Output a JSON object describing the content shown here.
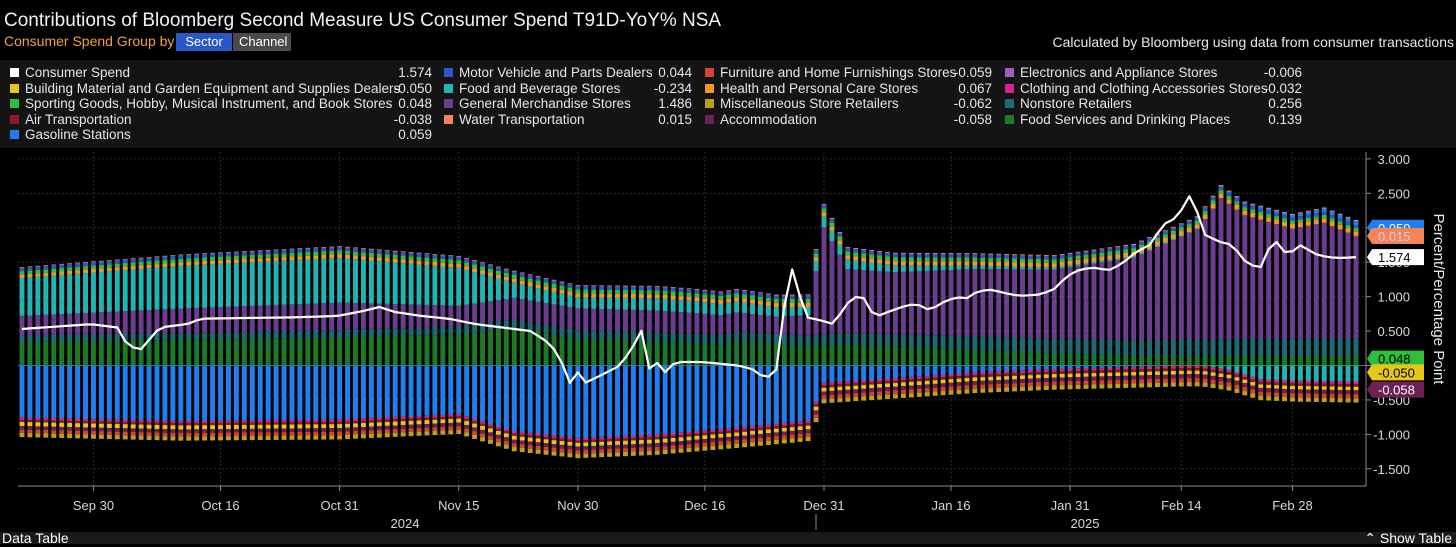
{
  "header": {
    "title": "Contributions of Bloomberg Second Measure US Consumer Spend T91D-YoY% NSA",
    "group_by_label": "Consumer Spend  Group by",
    "sector_button": "Sector",
    "channel_button": "Channel",
    "note": "Calculated by Bloomberg using data from consumer transactions"
  },
  "footer": {
    "data_table": "Data Table",
    "show_table": "⌃ Show Table"
  },
  "legend": [
    {
      "label": "Consumer Spend",
      "value": "1.574",
      "color": "#ffffff"
    },
    {
      "label": "Building Material and Garden Equipment and Supplies Dealers",
      "value": "-0.050",
      "color": "#e6c619"
    },
    {
      "label": "Sporting Goods, Hobby, Musical Instrument, and Book Stores",
      "value": "0.048",
      "color": "#2fbf3c"
    },
    {
      "label": "Air Transportation",
      "value": "-0.038",
      "color": "#8b1a2a"
    },
    {
      "label": "Gasoline Stations",
      "value": "0.059",
      "color": "#1f7ff2"
    },
    {
      "label": "Motor Vehicle and Parts Dealers",
      "value": "0.044",
      "color": "#2b57c8"
    },
    {
      "label": "Food and Beverage Stores",
      "value": "-0.234",
      "color": "#22b3b3"
    },
    {
      "label": "General Merchandise Stores",
      "value": "1.486",
      "color": "#6a3d8f"
    },
    {
      "label": "Water Transportation",
      "value": "0.015",
      "color": "#f5835a"
    },
    {
      "label": "Furniture and Home Furnishings Stores",
      "value": "-0.059",
      "color": "#d2452e"
    },
    {
      "label": "Health and Personal Care Stores",
      "value": "0.067",
      "color": "#f0962a"
    },
    {
      "label": "Miscellaneous Store Retailers",
      "value": "-0.062",
      "color": "#b8a21a"
    },
    {
      "label": "Accommodation",
      "value": "-0.058",
      "color": "#6e1f55"
    },
    {
      "label": "Electronics and Appliance Stores",
      "value": "-0.006",
      "color": "#9b5fc0"
    },
    {
      "label": "Clothing and Clothing Accessories Stores",
      "value": "-0.032",
      "color": "#d6258a"
    },
    {
      "label": "Nonstore Retailers",
      "value": "0.256",
      "color": "#1d6b73"
    },
    {
      "label": "Food Services and Drinking Places",
      "value": "0.139",
      "color": "#1e7a26"
    }
  ],
  "chart_data": {
    "type": "bar",
    "stacked": true,
    "ylabel": "Percent/Percentage Point",
    "ylim": [
      -1.75,
      3.1
    ],
    "yticks": [
      "3.000",
      "2.500",
      "2.000",
      "1.500",
      "1.000",
      "0.500",
      "0.000",
      "-0.500",
      "-1.000",
      "-1.500"
    ],
    "xticks": [
      "Sep 30",
      "Oct 16",
      "Oct 31",
      "Nov 15",
      "Nov 30",
      "Dec 16",
      "Dec 31",
      "Jan 16",
      "Jan 31",
      "Feb 14",
      "Feb 28"
    ],
    "year_labels": [
      "2024",
      "2025"
    ],
    "x_start": "2024-09-21",
    "x_end": "2025-03-08",
    "line_series": "Consumer Spend",
    "components": [
      {
        "name": "Food Services and Drinking Places",
        "color": "#1e7a26",
        "anchors": [
          [
            0,
            0.34
          ],
          [
            40,
            0.4
          ],
          [
            55,
            0.45
          ],
          [
            62,
            0.55
          ],
          [
            70,
            0.38
          ],
          [
            80,
            0.35
          ],
          [
            88,
            0.3
          ],
          [
            90,
            0.35
          ],
          [
            99,
            0.28
          ],
          [
            103,
            0.32
          ],
          [
            120,
            0.22
          ],
          [
            140,
            0.14
          ],
          [
            168,
            0.139
          ]
        ]
      },
      {
        "name": "Nonstore Retailers",
        "color": "#1d6b73",
        "anchors": [
          [
            0,
            0.1
          ],
          [
            60,
            0.12
          ],
          [
            80,
            0.14
          ],
          [
            99,
            0.15
          ],
          [
            120,
            0.2
          ],
          [
            150,
            0.24
          ],
          [
            168,
            0.256
          ]
        ]
      },
      {
        "name": "General Merchandise Stores",
        "color": "#6a3d8f",
        "anchors": [
          [
            0,
            0.28
          ],
          [
            20,
            0.35
          ],
          [
            40,
            0.4
          ],
          [
            55,
            0.3
          ],
          [
            70,
            0.32
          ],
          [
            85,
            0.3
          ],
          [
            95,
            0.25
          ],
          [
            99,
            0.3
          ],
          [
            101,
            1.55
          ],
          [
            104,
            0.92
          ],
          [
            110,
            0.9
          ],
          [
            120,
            0.98
          ],
          [
            130,
            1.0
          ],
          [
            140,
            1.2
          ],
          [
            148,
            1.6
          ],
          [
            151,
            2.05
          ],
          [
            154,
            1.8
          ],
          [
            160,
            1.6
          ],
          [
            164,
            1.68
          ],
          [
            168,
            1.486
          ]
        ]
      },
      {
        "name": "Food and Beverage Stores",
        "color": "#22b3b3",
        "anchors": [
          [
            0,
            0.55
          ],
          [
            20,
            0.62
          ],
          [
            40,
            0.65
          ],
          [
            55,
            0.55
          ],
          [
            62,
            0.22
          ],
          [
            70,
            0.16
          ],
          [
            80,
            0.18
          ],
          [
            90,
            0.16
          ],
          [
            99,
            0.12
          ],
          [
            101,
            0.16
          ],
          [
            110,
            0.1
          ],
          [
            120,
            0.05
          ],
          [
            130,
            0.03
          ],
          [
            140,
            0.02
          ],
          [
            148,
            0.01
          ],
          [
            152,
            -0.06
          ],
          [
            156,
            -0.2
          ],
          [
            160,
            -0.22
          ],
          [
            168,
            -0.234
          ]
        ]
      },
      {
        "name": "Health and Personal Care Stores",
        "color": "#f0962a",
        "anchors": [
          [
            0,
            0.05
          ],
          [
            99,
            0.06
          ],
          [
            168,
            0.067
          ]
        ]
      },
      {
        "name": "Sporting Goods, Hobby, Musical Instrument, and Book Stores",
        "color": "#2fbf3c",
        "anchors": [
          [
            0,
            0.05
          ],
          [
            99,
            0.06
          ],
          [
            168,
            0.048
          ]
        ]
      },
      {
        "name": "Motor Vehicle and Parts Dealers",
        "color": "#2b57c8",
        "anchors": [
          [
            0,
            0.05
          ],
          [
            99,
            0.05
          ],
          [
            168,
            0.044
          ]
        ]
      },
      {
        "name": "Gasoline Stations",
        "color": "#1f7ff2",
        "anchors": [
          [
            0,
            -0.75
          ],
          [
            20,
            -0.8
          ],
          [
            40,
            -0.78
          ],
          [
            55,
            -0.7
          ],
          [
            62,
            -0.95
          ],
          [
            70,
            -1.05
          ],
          [
            80,
            -1.0
          ],
          [
            90,
            -0.9
          ],
          [
            99,
            -0.8
          ],
          [
            101,
            -0.25
          ],
          [
            110,
            -0.18
          ],
          [
            120,
            -0.1
          ],
          [
            130,
            -0.05
          ],
          [
            140,
            -0.02
          ],
          [
            150,
            0.01
          ],
          [
            168,
            0.059
          ]
        ]
      },
      {
        "name": "Water Transportation",
        "color": "#f5835a",
        "anchors": [
          [
            0,
            0.01
          ],
          [
            168,
            0.015
          ]
        ]
      },
      {
        "name": "Electronics and Appliance Stores",
        "color": "#9b5fc0",
        "anchors": [
          [
            0,
            -0.01
          ],
          [
            168,
            -0.006
          ]
        ]
      },
      {
        "name": "Clothing and Clothing Accessories Stores",
        "color": "#d6258a",
        "anchors": [
          [
            0,
            -0.03
          ],
          [
            168,
            -0.032
          ]
        ]
      },
      {
        "name": "Air Transportation",
        "color": "#8b1a2a",
        "anchors": [
          [
            0,
            -0.03
          ],
          [
            168,
            -0.038
          ]
        ]
      },
      {
        "name": "Building Material and Garden Equipment and Supplies Dealers",
        "color": "#e6c619",
        "anchors": [
          [
            0,
            -0.06
          ],
          [
            168,
            -0.05
          ]
        ]
      },
      {
        "name": "Accommodation",
        "color": "#6e1f55",
        "anchors": [
          [
            0,
            -0.05
          ],
          [
            168,
            -0.058
          ]
        ]
      },
      {
        "name": "Furniture and Home Furnishings Stores",
        "color": "#d2452e",
        "anchors": [
          [
            0,
            -0.05
          ],
          [
            168,
            -0.059
          ]
        ]
      },
      {
        "name": "Miscellaneous Store Retailers",
        "color": "#b8a21a",
        "anchors": [
          [
            0,
            -0.06
          ],
          [
            168,
            -0.062
          ]
        ]
      }
    ],
    "consumer_spend": [
      [
        0,
        0.53
      ],
      [
        10,
        0.6
      ],
      [
        14,
        0.55
      ],
      [
        15,
        0.35
      ],
      [
        17,
        0.2
      ],
      [
        20,
        0.55
      ],
      [
        24,
        0.6
      ],
      [
        26,
        0.68
      ],
      [
        40,
        0.7
      ],
      [
        46,
        0.72
      ],
      [
        50,
        0.8
      ],
      [
        52,
        0.85
      ],
      [
        54,
        0.78
      ],
      [
        58,
        0.72
      ],
      [
        62,
        0.68
      ],
      [
        66,
        0.6
      ],
      [
        70,
        0.55
      ],
      [
        74,
        0.5
      ],
      [
        77,
        0.3
      ],
      [
        79,
        -0.05
      ],
      [
        80,
        -0.35
      ],
      [
        81,
        -0.05
      ],
      [
        82,
        -0.25
      ],
      [
        85,
        -0.1
      ],
      [
        87,
        0.0
      ],
      [
        89,
        0.3
      ],
      [
        90,
        0.55
      ],
      [
        91,
        -0.1
      ],
      [
        92,
        0.15
      ],
      [
        93,
        -0.15
      ],
      [
        95,
        0.05
      ],
      [
        97,
        0.05
      ],
      [
        99,
        0.05
      ],
      [
        102,
        0.02
      ],
      [
        104,
        0.0
      ],
      [
        106,
        -0.04
      ],
      [
        108,
        -0.18
      ],
      [
        109,
        -0.15
      ],
      [
        110,
        -0.02
      ],
      [
        111,
        1.0
      ],
      [
        112,
        1.4
      ],
      [
        114,
        0.7
      ],
      [
        116,
        0.66
      ],
      [
        118,
        0.6
      ],
      [
        120,
        0.9
      ],
      [
        122,
        1.05
      ],
      [
        124,
        0.7
      ],
      [
        126,
        0.78
      ],
      [
        128,
        0.85
      ],
      [
        130,
        0.9
      ],
      [
        132,
        0.8
      ],
      [
        134,
        0.92
      ],
      [
        136,
        1.0
      ],
      [
        137,
        0.95
      ],
      [
        139,
        1.08
      ],
      [
        141,
        1.1
      ],
      [
        143,
        1.05
      ],
      [
        145,
        1.01
      ],
      [
        148,
        1.03
      ],
      [
        150,
        1.1
      ],
      [
        152,
        1.3
      ],
      [
        154,
        1.4
      ],
      [
        156,
        1.42
      ],
      [
        158,
        1.38
      ],
      [
        160,
        1.48
      ],
      [
        162,
        1.65
      ],
      [
        164,
        1.75
      ],
      [
        166,
        2.05
      ],
      [
        168,
        2.15
      ],
      [
        170,
        2.5
      ],
      [
        172,
        1.9
      ],
      [
        174,
        1.8
      ],
      [
        176,
        1.75
      ],
      [
        178,
        1.5
      ],
      [
        180,
        1.4
      ],
      [
        182,
        1.85
      ],
      [
        184,
        1.6
      ],
      [
        186,
        1.75
      ],
      [
        188,
        1.62
      ],
      [
        190,
        1.57
      ],
      [
        192,
        1.56
      ],
      [
        194,
        1.574
      ]
    ],
    "right_badges": [
      {
        "value": "0.059",
        "color": "#1f7ff2",
        "text_color": "#ffffff",
        "y": 2.0
      },
      {
        "value": "0.015",
        "color": "#f5835a",
        "text_color": "#d0d0d0",
        "y": 1.88
      },
      {
        "value": "1.574",
        "color": "#ffffff",
        "text_color": "#000000",
        "y": 1.574
      },
      {
        "value": "0.048",
        "color": "#2fbf3c",
        "text_color": "#000000",
        "y": 0.1
      },
      {
        "value": "-0.050",
        "color": "#e6c619",
        "text_color": "#000000",
        "y": -0.1
      },
      {
        "value": "-0.058",
        "color": "#6e1f55",
        "text_color": "#ffffff",
        "y": -0.35
      }
    ]
  }
}
